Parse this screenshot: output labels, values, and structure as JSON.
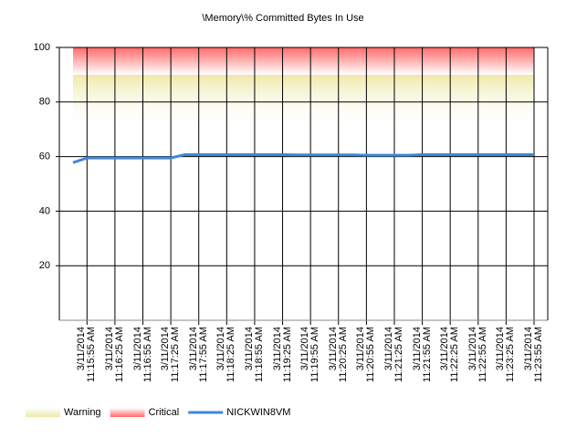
{
  "chart_data": {
    "type": "line",
    "title": "\\Memory\\% Committed Bytes In Use",
    "categories": [
      null,
      "3/11/2014\n11:15:55 AM",
      null,
      "3/11/2014\n11:16:25 AM",
      null,
      "3/11/2014\n11:16:55 AM",
      null,
      "3/11/2014\n11:17:25 AM",
      null,
      "3/11/2014\n11:17:55 AM",
      null,
      "3/11/2014\n11:18:25 AM",
      null,
      "3/11/2014\n11:18:55 AM",
      null,
      "3/11/2014\n11:19:25 AM",
      null,
      "3/11/2014\n11:19:55 AM",
      null,
      "3/11/2014\n11:20:25 AM",
      null,
      "3/11/2014\n11:20:55 AM",
      null,
      "3/11/2014\n11:21:25 AM",
      null,
      "3/11/2014\n11:21:55 AM",
      null,
      "3/11/2014\n11:22:25 AM",
      null,
      "3/11/2014\n11:22:55 AM",
      null,
      "3/11/2014\n11:23:25 AM",
      null,
      "3/11/2014\n11:23:55 AM"
    ],
    "series": [
      {
        "name": "NICKWIN8VM",
        "color": "#3f87d8",
        "values": [
          57.8,
          59.5,
          59.5,
          59.5,
          59.5,
          59.5,
          59.5,
          59.5,
          60.7,
          60.7,
          60.7,
          60.7,
          60.7,
          60.7,
          60.7,
          60.7,
          60.6,
          60.6,
          60.6,
          60.6,
          60.6,
          60.5,
          60.5,
          60.5,
          60.5,
          60.7,
          60.7,
          60.7,
          60.7,
          60.7,
          60.7,
          60.7,
          60.7,
          60.7
        ]
      }
    ],
    "bands": [
      {
        "name": "Warning",
        "range": [
          70,
          90
        ],
        "color": "#efe9a8"
      },
      {
        "name": "Critical",
        "range": [
          90,
          100
        ],
        "color": "#ff6a6a"
      }
    ],
    "ylim": [
      0,
      100
    ],
    "yticks": [
      20,
      40,
      60,
      80,
      100
    ],
    "grid": true,
    "legend": "bottom-left"
  }
}
